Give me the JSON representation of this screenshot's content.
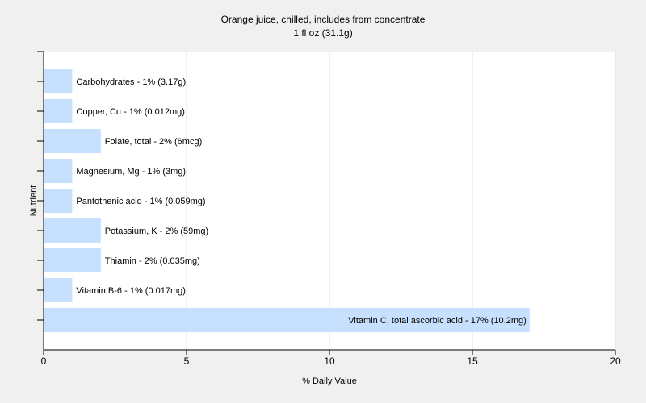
{
  "chart_data": {
    "type": "bar",
    "orientation": "horizontal",
    "title": "Orange juice, chilled, includes from concentrate",
    "subtitle": "1 fl oz (31.1g)",
    "xlabel": "% Daily Value",
    "ylabel": "Nutrient",
    "xlim": [
      0,
      20
    ],
    "xticks": [
      0,
      5,
      10,
      15,
      20
    ],
    "grid": true,
    "bar_color": "#c6e0fe",
    "categories": [
      "Carbohydrates - 1% (3.17g)",
      "Copper, Cu - 1% (0.012mg)",
      "Folate, total - 2% (6mcg)",
      "Magnesium, Mg - 1% (3mg)",
      "Pantothenic acid - 1% (0.059mg)",
      "Potassium, K - 2% (59mg)",
      "Thiamin - 2% (0.035mg)",
      "Vitamin B-6 - 1% (0.017mg)",
      "Vitamin C, total ascorbic acid - 17% (10.2mg)"
    ],
    "values": [
      1,
      1,
      2,
      1,
      1,
      2,
      2,
      1,
      17
    ]
  }
}
